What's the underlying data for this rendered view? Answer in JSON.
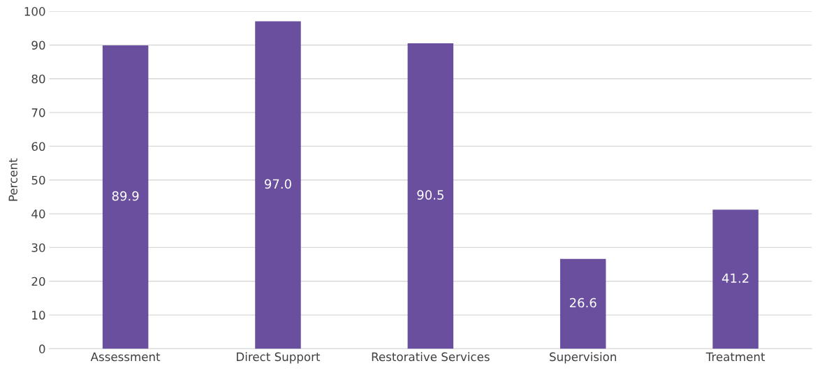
{
  "chart_data": {
    "type": "bar",
    "ylabel": "Percent",
    "categories": [
      "Assessment",
      "Direct Support",
      "Restorative Services",
      "Supervision",
      "Treatment"
    ],
    "values": [
      89.9,
      97.0,
      90.5,
      26.6,
      41.2
    ],
    "color": "#6a4f9e",
    "ylim": [
      0,
      100
    ],
    "yticks": [
      0,
      10,
      20,
      30,
      40,
      50,
      60,
      70,
      80,
      90,
      100
    ],
    "grid": "y",
    "value_labels": [
      "89.9",
      "97.0",
      "90.5",
      "26.6",
      "41.2"
    ]
  }
}
